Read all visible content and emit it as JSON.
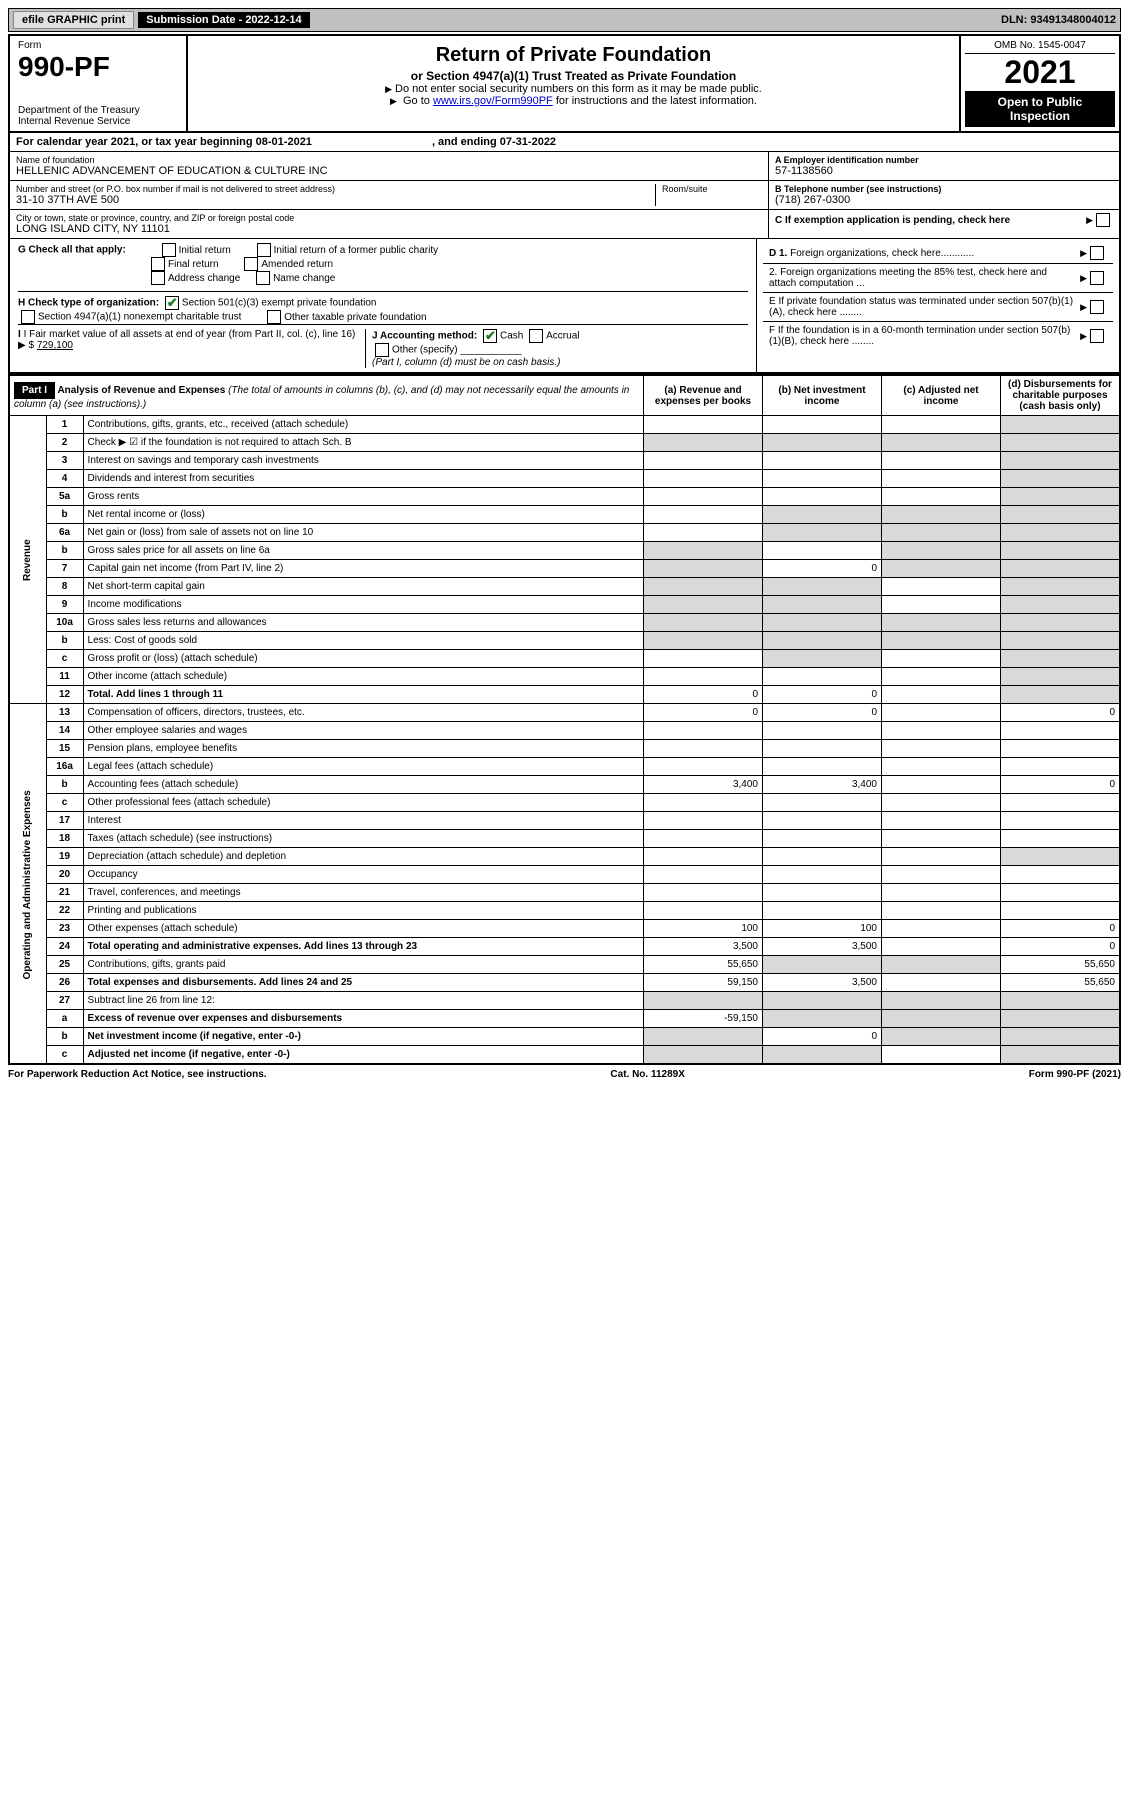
{
  "topbar": {
    "efile": "efile GRAPHIC print",
    "submission_label": "Submission Date - 2022-12-14",
    "dln": "DLN: 93491348004012"
  },
  "header": {
    "form_word": "Form",
    "form_no": "990-PF",
    "dept": "Department of the Treasury",
    "irs": "Internal Revenue Service",
    "title": "Return of Private Foundation",
    "subtitle": "or Section 4947(a)(1) Trust Treated as Private Foundation",
    "instr1": "Do not enter social security numbers on this form as it may be made public.",
    "instr2_a": "Go to ",
    "instr2_link": "www.irs.gov/Form990PF",
    "instr2_b": " for instructions and the latest information.",
    "omb": "OMB No. 1545-0047",
    "year": "2021",
    "inspection": "Open to Public Inspection"
  },
  "calendar": {
    "text_a": "For calendar year 2021, or tax year beginning ",
    "begin": "08-01-2021",
    "text_b": ", and ending ",
    "end": "07-31-2022"
  },
  "entity": {
    "name_label": "Name of foundation",
    "name": "HELLENIC ADVANCEMENT OF EDUCATION & CULTURE INC",
    "addr_label": "Number and street (or P.O. box number if mail is not delivered to street address)",
    "addr": "31-10 37TH AVE 500",
    "room_label": "Room/suite",
    "city_label": "City or town, state or province, country, and ZIP or foreign postal code",
    "city": "LONG ISLAND CITY, NY  11101",
    "ein_label": "A Employer identification number",
    "ein": "57-1138560",
    "phone_label": "B Telephone number (see instructions)",
    "phone": "(718) 267-0300",
    "c_label": "C If exemption application is pending, check here"
  },
  "g_section": {
    "g_label": "G Check all that apply:",
    "opts": [
      "Initial return",
      "Initial return of a former public charity",
      "Final return",
      "Amended return",
      "Address change",
      "Name change"
    ],
    "h_label": "H Check type of organization:",
    "h_opt1": "Section 501(c)(3) exempt private foundation",
    "h_opt2": "Section 4947(a)(1) nonexempt charitable trust",
    "h_opt3": "Other taxable private foundation",
    "i_label_a": "I Fair market value of all assets at end of year (from Part II, col. (c), line 16)",
    "i_prefix": "$",
    "i_value": "729,100",
    "j_label": "J Accounting method:",
    "j_cash": "Cash",
    "j_accrual": "Accrual",
    "j_other": "Other (specify)",
    "j_note": "(Part I, column (d) must be on cash basis.)"
  },
  "d_section": {
    "d1": "D 1. Foreign organizations, check here",
    "d2": "2. Foreign organizations meeting the 85% test, check here and attach computation ...",
    "e": "E  If private foundation status was terminated under section 507(b)(1)(A), check here ........",
    "f": "F  If the foundation is in a 60-month termination under section 507(b)(1)(B), check here ........"
  },
  "part1": {
    "label": "Part I",
    "title": "Analysis of Revenue and Expenses",
    "title_note": " (The total of amounts in columns (b), (c), and (d) may not necessarily equal the amounts in column (a) (see instructions).)",
    "col_a": "(a) Revenue and expenses per books",
    "col_b": "(b) Net investment income",
    "col_c": "(c) Adjusted net income",
    "col_d": "(d) Disbursements for charitable purposes (cash basis only)"
  },
  "sections": {
    "revenue": "Revenue",
    "expenses": "Operating and Administrative Expenses"
  },
  "rows": [
    {
      "no": "1",
      "desc": "Contributions, gifts, grants, etc., received (attach schedule)",
      "a": "",
      "b": "",
      "c": "",
      "d": "shade"
    },
    {
      "no": "2",
      "desc": "Check ▶ ☑ if the foundation is not required to attach Sch. B",
      "a": "shade",
      "b": "shade",
      "c": "shade",
      "d": "shade"
    },
    {
      "no": "3",
      "desc": "Interest on savings and temporary cash investments",
      "a": "",
      "b": "",
      "c": "",
      "d": "shade"
    },
    {
      "no": "4",
      "desc": "Dividends and interest from securities",
      "a": "",
      "b": "",
      "c": "",
      "d": "shade"
    },
    {
      "no": "5a",
      "desc": "Gross rents",
      "a": "",
      "b": "",
      "c": "",
      "d": "shade"
    },
    {
      "no": "b",
      "desc": "Net rental income or (loss)",
      "a": "",
      "b": "shade",
      "c": "shade",
      "d": "shade"
    },
    {
      "no": "6a",
      "desc": "Net gain or (loss) from sale of assets not on line 10",
      "a": "",
      "b": "shade",
      "c": "shade",
      "d": "shade"
    },
    {
      "no": "b",
      "desc": "Gross sales price for all assets on line 6a",
      "a": "shade",
      "b": "",
      "c": "shade",
      "d": "shade"
    },
    {
      "no": "7",
      "desc": "Capital gain net income (from Part IV, line 2)",
      "a": "shade",
      "b": "0",
      "c": "shade",
      "d": "shade"
    },
    {
      "no": "8",
      "desc": "Net short-term capital gain",
      "a": "shade",
      "b": "shade",
      "c": "",
      "d": "shade"
    },
    {
      "no": "9",
      "desc": "Income modifications",
      "a": "shade",
      "b": "shade",
      "c": "",
      "d": "shade"
    },
    {
      "no": "10a",
      "desc": "Gross sales less returns and allowances",
      "a": "shade",
      "b": "shade",
      "c": "shade",
      "d": "shade"
    },
    {
      "no": "b",
      "desc": "Less: Cost of goods sold",
      "a": "shade",
      "b": "shade",
      "c": "shade",
      "d": "shade"
    },
    {
      "no": "c",
      "desc": "Gross profit or (loss) (attach schedule)",
      "a": "",
      "b": "shade",
      "c": "",
      "d": "shade"
    },
    {
      "no": "11",
      "desc": "Other income (attach schedule)",
      "a": "",
      "b": "",
      "c": "",
      "d": "shade"
    },
    {
      "no": "12",
      "desc": "Total. Add lines 1 through 11",
      "a": "0",
      "b": "0",
      "c": "",
      "d": "shade",
      "bold": true
    }
  ],
  "exp_rows": [
    {
      "no": "13",
      "desc": "Compensation of officers, directors, trustees, etc.",
      "a": "0",
      "b": "0",
      "c": "",
      "d": "0"
    },
    {
      "no": "14",
      "desc": "Other employee salaries and wages",
      "a": "",
      "b": "",
      "c": "",
      "d": ""
    },
    {
      "no": "15",
      "desc": "Pension plans, employee benefits",
      "a": "",
      "b": "",
      "c": "",
      "d": ""
    },
    {
      "no": "16a",
      "desc": "Legal fees (attach schedule)",
      "a": "",
      "b": "",
      "c": "",
      "d": ""
    },
    {
      "no": "b",
      "desc": "Accounting fees (attach schedule)",
      "a": "3,400",
      "b": "3,400",
      "c": "",
      "d": "0"
    },
    {
      "no": "c",
      "desc": "Other professional fees (attach schedule)",
      "a": "",
      "b": "",
      "c": "",
      "d": ""
    },
    {
      "no": "17",
      "desc": "Interest",
      "a": "",
      "b": "",
      "c": "",
      "d": ""
    },
    {
      "no": "18",
      "desc": "Taxes (attach schedule) (see instructions)",
      "a": "",
      "b": "",
      "c": "",
      "d": ""
    },
    {
      "no": "19",
      "desc": "Depreciation (attach schedule) and depletion",
      "a": "",
      "b": "",
      "c": "",
      "d": "shade"
    },
    {
      "no": "20",
      "desc": "Occupancy",
      "a": "",
      "b": "",
      "c": "",
      "d": ""
    },
    {
      "no": "21",
      "desc": "Travel, conferences, and meetings",
      "a": "",
      "b": "",
      "c": "",
      "d": ""
    },
    {
      "no": "22",
      "desc": "Printing and publications",
      "a": "",
      "b": "",
      "c": "",
      "d": ""
    },
    {
      "no": "23",
      "desc": "Other expenses (attach schedule)",
      "a": "100",
      "b": "100",
      "c": "",
      "d": "0"
    },
    {
      "no": "24",
      "desc": "Total operating and administrative expenses. Add lines 13 through 23",
      "a": "3,500",
      "b": "3,500",
      "c": "",
      "d": "0",
      "bold": true
    },
    {
      "no": "25",
      "desc": "Contributions, gifts, grants paid",
      "a": "55,650",
      "b": "shade",
      "c": "shade",
      "d": "55,650"
    },
    {
      "no": "26",
      "desc": "Total expenses and disbursements. Add lines 24 and 25",
      "a": "59,150",
      "b": "3,500",
      "c": "",
      "d": "55,650",
      "bold": true
    },
    {
      "no": "27",
      "desc": "Subtract line 26 from line 12:",
      "a": "shade",
      "b": "shade",
      "c": "shade",
      "d": "shade"
    },
    {
      "no": "a",
      "desc": "Excess of revenue over expenses and disbursements",
      "a": "-59,150",
      "b": "shade",
      "c": "shade",
      "d": "shade",
      "bold": true
    },
    {
      "no": "b",
      "desc": "Net investment income (if negative, enter -0-)",
      "a": "shade",
      "b": "0",
      "c": "shade",
      "d": "shade",
      "bold": true
    },
    {
      "no": "c",
      "desc": "Adjusted net income (if negative, enter -0-)",
      "a": "shade",
      "b": "shade",
      "c": "",
      "d": "shade",
      "bold": true
    }
  ],
  "footer": {
    "left": "For Paperwork Reduction Act Notice, see instructions.",
    "center": "Cat. No. 11289X",
    "right": "Form 990-PF (2021)"
  }
}
